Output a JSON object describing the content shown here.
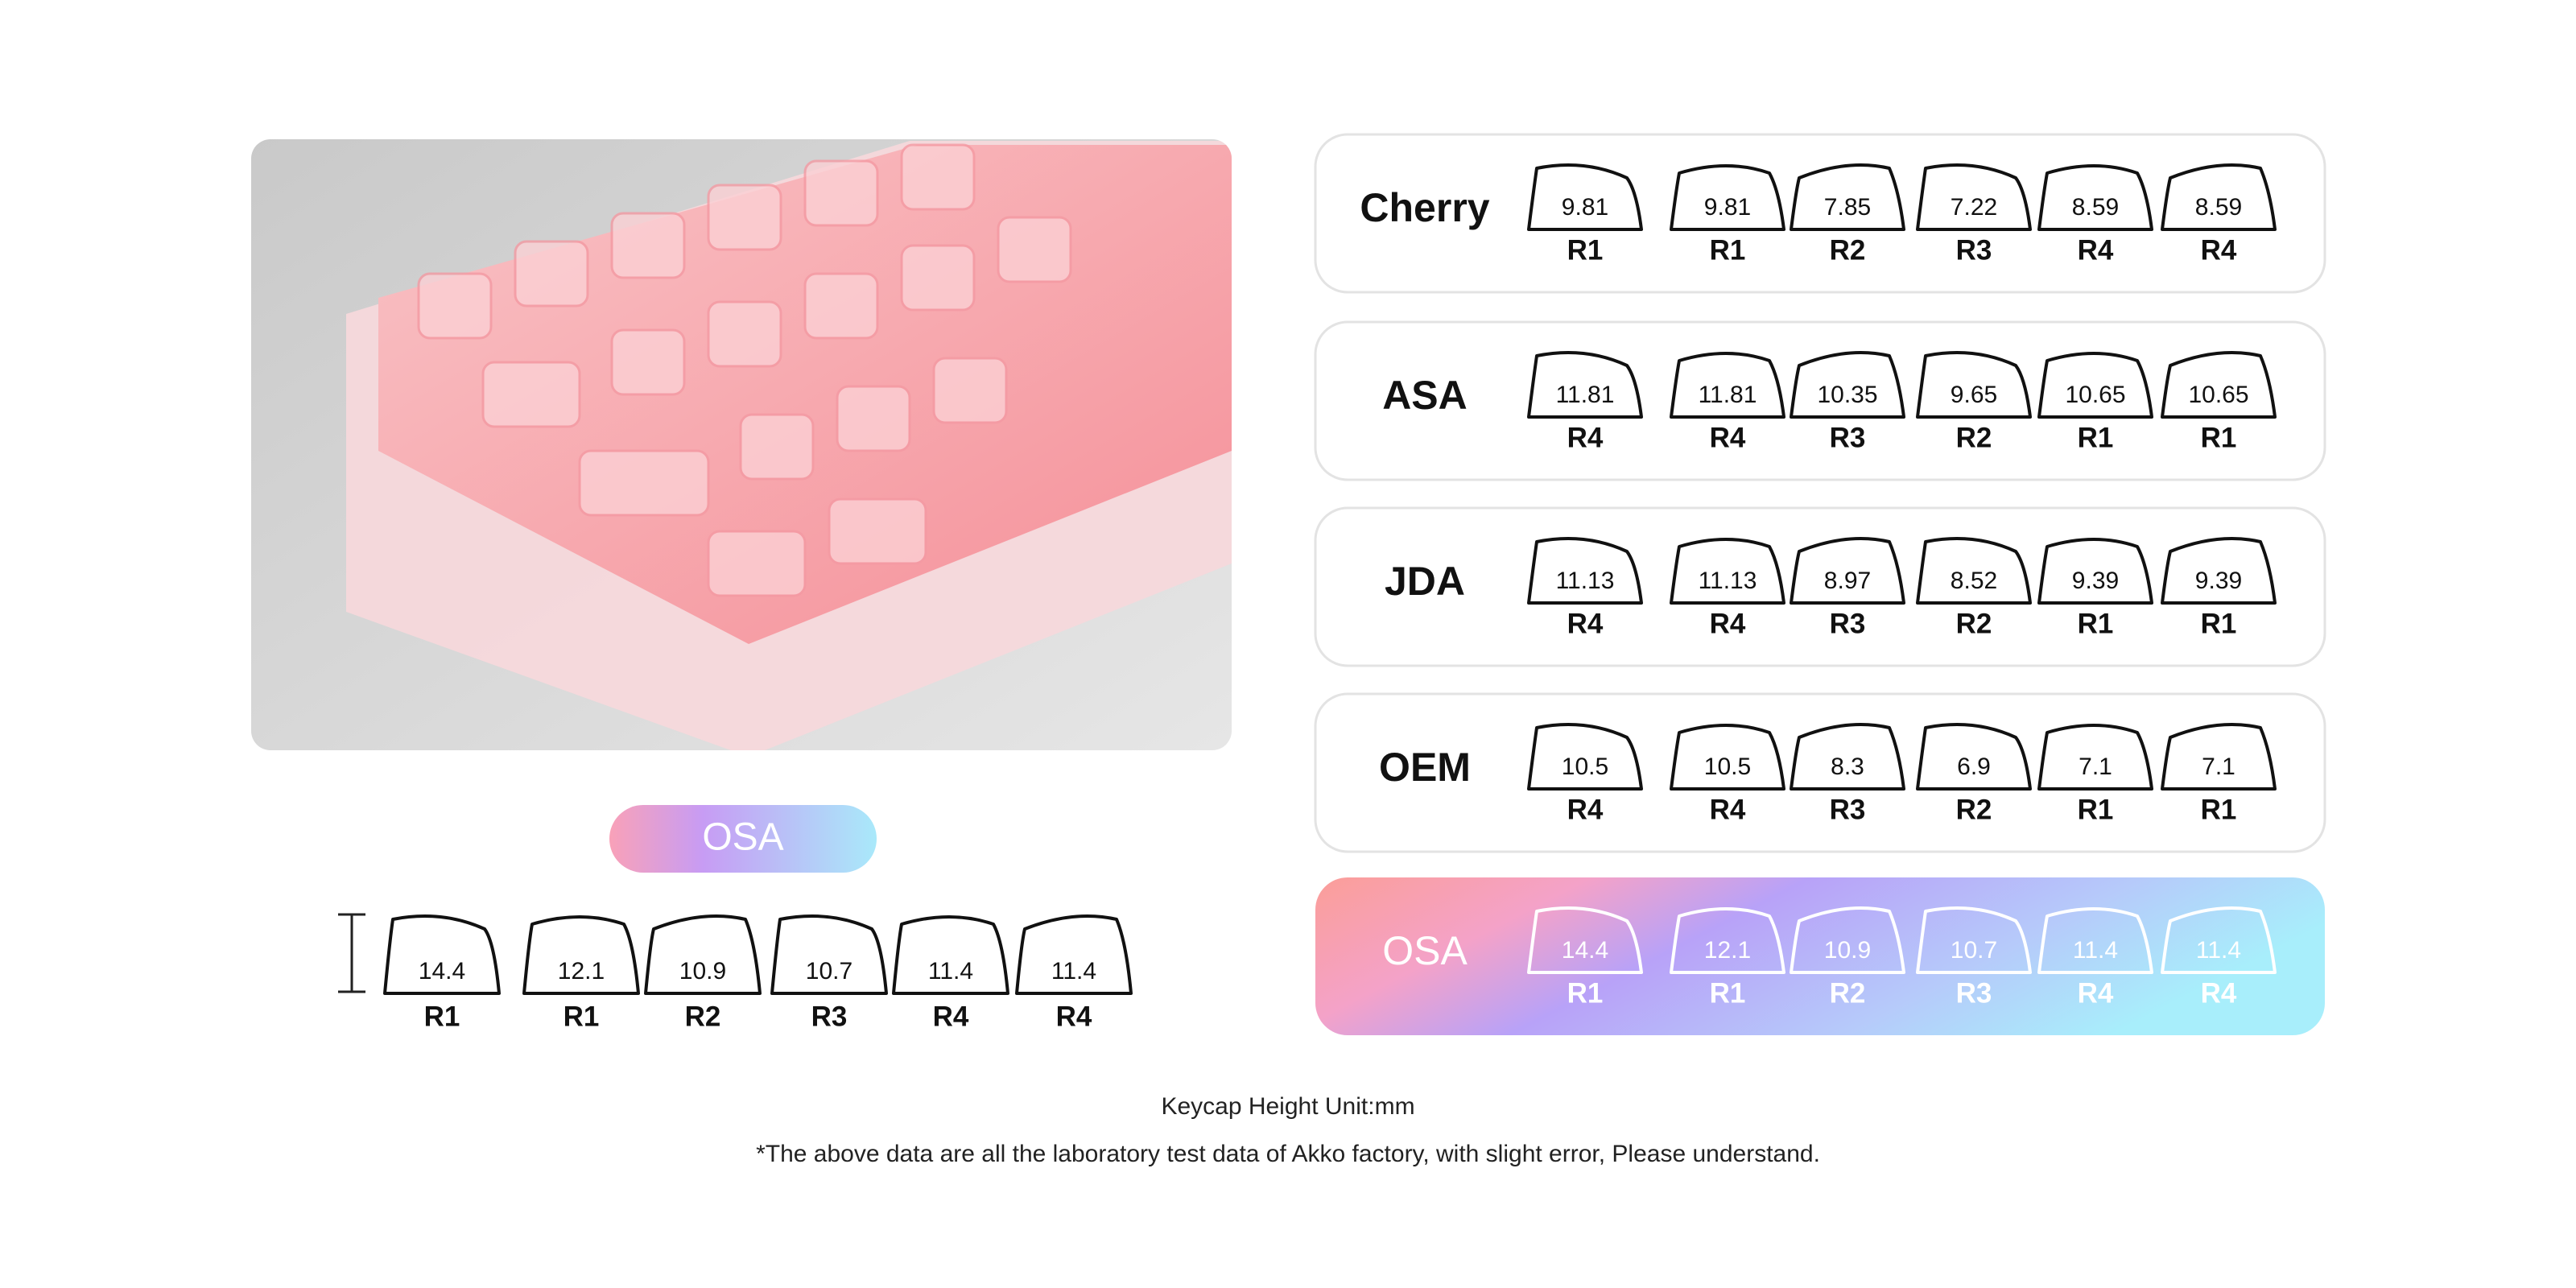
{
  "osa_badge": "OSA",
  "osa_keys": [
    {
      "height": 14.4,
      "row": "R1"
    },
    {
      "height": 12.1,
      "row": "R1"
    },
    {
      "height": 10.9,
      "row": "R2"
    },
    {
      "height": 10.7,
      "row": "R3"
    },
    {
      "height": 11.4,
      "row": "R4"
    },
    {
      "height": 11.4,
      "row": "R4"
    }
  ],
  "profiles": [
    {
      "name": "Cherry",
      "keys": [
        {
          "height": 9.81,
          "row": "R1"
        },
        {
          "height": 9.81,
          "row": "R1"
        },
        {
          "height": 7.85,
          "row": "R2"
        },
        {
          "height": 7.22,
          "row": "R3"
        },
        {
          "height": 8.59,
          "row": "R4"
        },
        {
          "height": 8.59,
          "row": "R4"
        }
      ]
    },
    {
      "name": "ASA",
      "keys": [
        {
          "height": 11.81,
          "row": "R4"
        },
        {
          "height": 11.81,
          "row": "R4"
        },
        {
          "height": 10.35,
          "row": "R3"
        },
        {
          "height": 9.65,
          "row": "R2"
        },
        {
          "height": 10.65,
          "row": "R1"
        },
        {
          "height": 10.65,
          "row": "R1"
        }
      ]
    },
    {
      "name": "JDA",
      "keys": [
        {
          "height": 11.13,
          "row": "R4"
        },
        {
          "height": 11.13,
          "row": "R4"
        },
        {
          "height": 8.97,
          "row": "R3"
        },
        {
          "height": 8.52,
          "row": "R2"
        },
        {
          "height": 9.39,
          "row": "R1"
        },
        {
          "height": 9.39,
          "row": "R1"
        }
      ]
    },
    {
      "name": "OEM",
      "keys": [
        {
          "height": 10.5,
          "row": "R4"
        },
        {
          "height": 10.5,
          "row": "R4"
        },
        {
          "height": 8.3,
          "row": "R3"
        },
        {
          "height": 6.9,
          "row": "R2"
        },
        {
          "height": 7.1,
          "row": "R1"
        },
        {
          "height": 7.1,
          "row": "R1"
        }
      ]
    },
    {
      "name": "OSA",
      "keys": [
        {
          "height": 14.4,
          "row": "R1"
        },
        {
          "height": 12.1,
          "row": "R1"
        },
        {
          "height": 10.9,
          "row": "R2"
        },
        {
          "height": 10.7,
          "row": "R3"
        },
        {
          "height": 11.4,
          "row": "R4"
        },
        {
          "height": 11.4,
          "row": "R4"
        }
      ]
    }
  ],
  "unit_note": "Keycap Height Unit:mm",
  "disclaimer": "*The above data are all the laboratory test data of Akko factory, with slight error, Please understand."
}
